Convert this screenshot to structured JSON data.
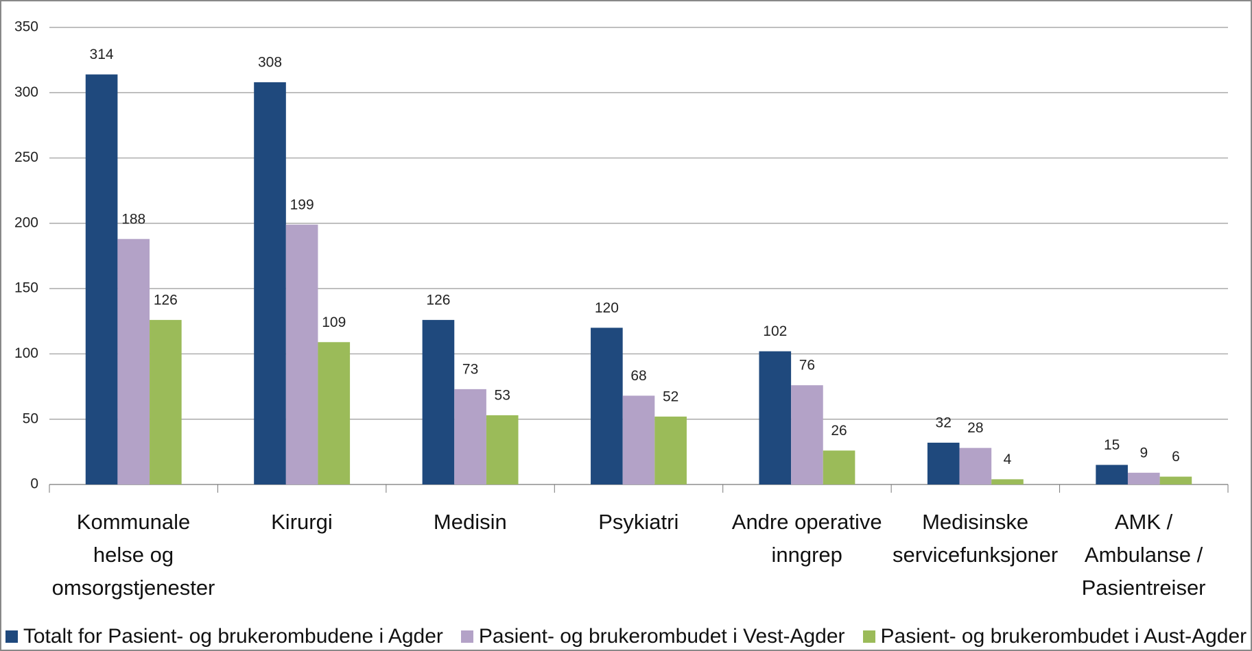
{
  "chart_data": {
    "type": "bar",
    "categories": [
      "Kommunale helse og omsorgstjenester",
      "Kirurgi",
      "Medisin",
      "Psykiatri",
      "Andre operative inngrep",
      "Medisinske servicefunksjoner",
      "AMK / Ambulanse / Pasientreiser"
    ],
    "series": [
      {
        "name": "Totalt for Pasient- og brukerombudene i Agder",
        "color": "#1f497d",
        "values": [
          314,
          308,
          126,
          120,
          102,
          32,
          15
        ]
      },
      {
        "name": "Pasient- og brukerombudet i Vest-Agder",
        "color": "#b3a2c7",
        "values": [
          188,
          199,
          73,
          68,
          76,
          28,
          9
        ]
      },
      {
        "name": "Pasient- og brukerombudet i Aust-Agder",
        "color": "#9bbb59",
        "values": [
          126,
          109,
          53,
          52,
          26,
          4,
          6
        ]
      }
    ],
    "ylim": [
      0,
      350
    ],
    "yticks": [
      0,
      50,
      100,
      150,
      200,
      250,
      300,
      350
    ],
    "grid": true,
    "legend": "bottom"
  }
}
